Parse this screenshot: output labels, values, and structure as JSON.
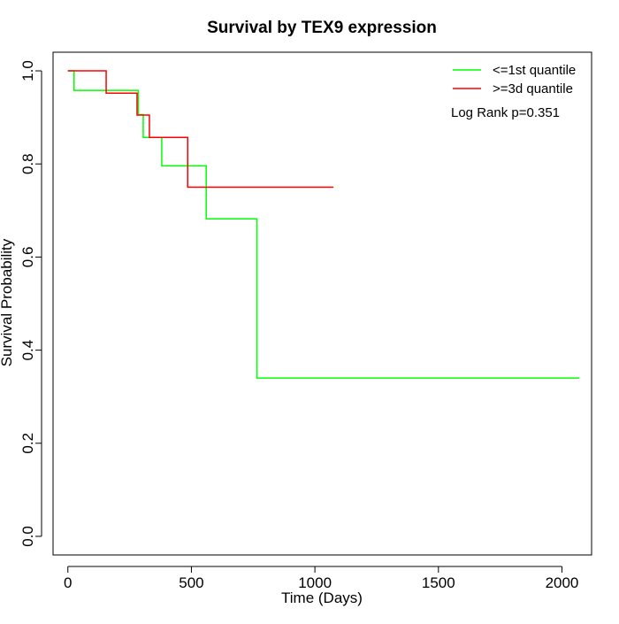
{
  "chart_data": {
    "type": "line",
    "subtype": "kaplan-meier step",
    "title": "Survival by TEX9 expression",
    "xlabel": "Time (Days)",
    "ylabel": "Survival Probability",
    "xlim": [
      -60,
      2120
    ],
    "ylim": [
      -0.04,
      1.04
    ],
    "x_ticks": [
      0,
      500,
      1000,
      1500,
      2000
    ],
    "y_ticks": [
      0.0,
      0.2,
      0.4,
      0.6,
      0.8,
      1.0
    ],
    "x_tick_labels": [
      "0",
      "500",
      "1000",
      "1500",
      "2000"
    ],
    "y_tick_labels": [
      "0.0",
      "0.2",
      "0.4",
      "0.6",
      "0.8",
      "1.0"
    ],
    "grid": false,
    "legend_position": "top-right",
    "annotation": "Log Rank p=0.351",
    "series": [
      {
        "name": "<=1st quantile",
        "color": "#00ff00",
        "steps": [
          [
            0,
            1.0
          ],
          [
            25,
            0.958
          ],
          [
            285,
            0.906
          ],
          [
            305,
            0.857
          ],
          [
            380,
            0.796
          ],
          [
            560,
            0.682
          ],
          [
            765,
            0.34
          ],
          [
            2070,
            0.34
          ]
        ]
      },
      {
        "name": ">=3d quantile",
        "color": "#ff0000",
        "steps": [
          [
            0,
            1.0
          ],
          [
            155,
            0.952
          ],
          [
            280,
            0.905
          ],
          [
            330,
            0.857
          ],
          [
            485,
            0.75
          ],
          [
            1075,
            0.75
          ]
        ]
      }
    ]
  }
}
